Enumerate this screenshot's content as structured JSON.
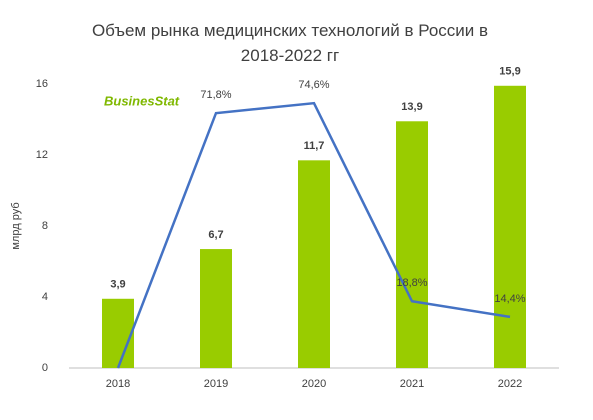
{
  "chart_data": {
    "type": "bar",
    "title": "Объем рынка медицинских технологий в России в 2018-2022 гг",
    "ylabel": "млрд руб",
    "logo": "BusinesStat",
    "categories": [
      "2018",
      "2019",
      "2020",
      "2021",
      "2022"
    ],
    "series": [
      {
        "type": "bar",
        "color": "#99cc00",
        "values": [
          3.9,
          6.7,
          11.7,
          13.9,
          15.9
        ],
        "value_labels": [
          "3,9",
          "6,7",
          "11,7",
          "13,9",
          "15,9"
        ]
      },
      {
        "type": "line",
        "axis": "y2",
        "color": "#4472c4",
        "values": [
          0,
          71.8,
          74.6,
          18.8,
          14.4
        ],
        "value_labels": [
          null,
          "71,8%",
          "74,6%",
          "18,8%",
          "14,4%"
        ]
      }
    ],
    "ylim": [
      0,
      16
    ],
    "yticks": [
      0,
      4,
      8,
      12,
      16
    ],
    "y2lim": [
      0,
      80
    ],
    "grid": false
  }
}
